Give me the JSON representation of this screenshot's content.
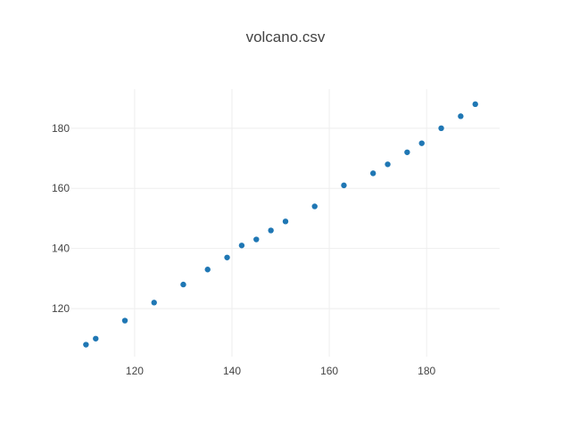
{
  "chart_data": {
    "type": "scatter",
    "title": "volcano.csv",
    "xlabel": "",
    "ylabel": "",
    "xlim": [
      107,
      195
    ],
    "ylim": [
      104,
      193
    ],
    "xticks": [
      120,
      140,
      160,
      180
    ],
    "yticks": [
      120,
      140,
      160,
      180
    ],
    "grid": true,
    "marker_color": "#1f77b4",
    "series": [
      {
        "x": [
          110,
          112,
          118,
          124,
          130,
          135,
          139,
          142,
          145,
          148,
          151,
          157,
          163,
          169,
          172,
          176,
          179,
          183,
          187,
          190
        ],
        "y": [
          108,
          110,
          116,
          122,
          128,
          133,
          137,
          141,
          143,
          146,
          149,
          154,
          161,
          165,
          168,
          172,
          175,
          180,
          184,
          188
        ]
      }
    ]
  }
}
